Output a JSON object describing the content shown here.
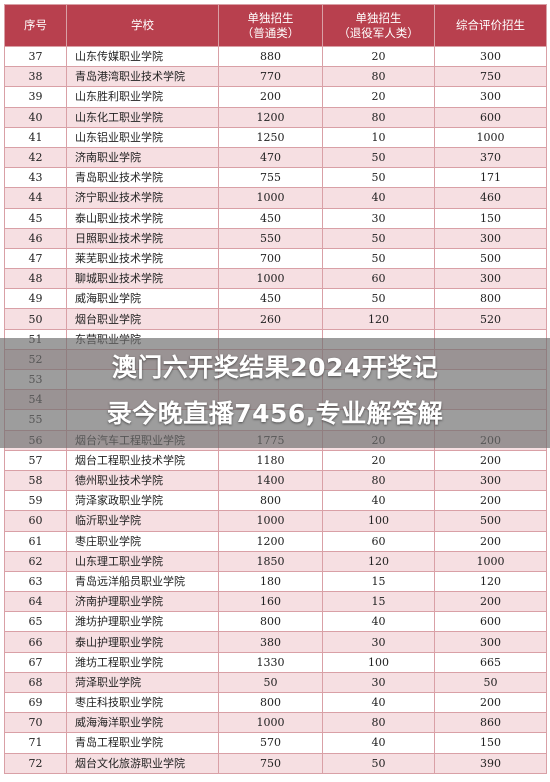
{
  "headers": {
    "no": "序号",
    "school": "学校",
    "general_line1": "单独招生",
    "general_line2": "（普通类）",
    "veteran_line1": "单独招生",
    "veteran_line2": "（退役军人类）",
    "comprehensive": "综合评价招生"
  },
  "rows": [
    {
      "no": "37",
      "school": "山东传媒职业学院",
      "general": "880",
      "veteran": "20",
      "comp": "300"
    },
    {
      "no": "38",
      "school": "青岛港湾职业技术学院",
      "general": "770",
      "veteran": "80",
      "comp": "750"
    },
    {
      "no": "39",
      "school": "山东胜利职业学院",
      "general": "200",
      "veteran": "20",
      "comp": "300"
    },
    {
      "no": "40",
      "school": "山东化工职业学院",
      "general": "1200",
      "veteran": "80",
      "comp": "600"
    },
    {
      "no": "41",
      "school": "山东铝业职业学院",
      "general": "1250",
      "veteran": "10",
      "comp": "1000"
    },
    {
      "no": "42",
      "school": "济南职业学院",
      "general": "470",
      "veteran": "50",
      "comp": "370"
    },
    {
      "no": "43",
      "school": "青岛职业技术学院",
      "general": "755",
      "veteran": "50",
      "comp": "171"
    },
    {
      "no": "44",
      "school": "济宁职业技术学院",
      "general": "1000",
      "veteran": "40",
      "comp": "460"
    },
    {
      "no": "45",
      "school": "泰山职业技术学院",
      "general": "450",
      "veteran": "30",
      "comp": "150"
    },
    {
      "no": "46",
      "school": "日照职业技术学院",
      "general": "550",
      "veteran": "50",
      "comp": "300"
    },
    {
      "no": "47",
      "school": "莱芜职业技术学院",
      "general": "700",
      "veteran": "50",
      "comp": "500"
    },
    {
      "no": "48",
      "school": "聊城职业技术学院",
      "general": "1000",
      "veteran": "60",
      "comp": "300"
    },
    {
      "no": "49",
      "school": "威海职业学院",
      "general": "450",
      "veteran": "50",
      "comp": "800"
    },
    {
      "no": "50",
      "school": "烟台职业学院",
      "general": "260",
      "veteran": "120",
      "comp": "520"
    },
    {
      "no": "51",
      "school": "东营职业学院",
      "general": "",
      "veteran": "",
      "comp": ""
    },
    {
      "no": "52",
      "school": "",
      "general": "",
      "veteran": "",
      "comp": ""
    },
    {
      "no": "53",
      "school": "",
      "general": "",
      "veteran": "",
      "comp": ""
    },
    {
      "no": "54",
      "school": "",
      "general": "",
      "veteran": "",
      "comp": ""
    },
    {
      "no": "55",
      "school": "",
      "general": "",
      "veteran": "",
      "comp": ""
    },
    {
      "no": "56",
      "school": "烟台汽车工程职业学院",
      "general": "1775",
      "veteran": "20",
      "comp": "200"
    },
    {
      "no": "57",
      "school": "烟台工程职业技术学院",
      "general": "1180",
      "veteran": "20",
      "comp": "200"
    },
    {
      "no": "58",
      "school": "德州职业技术学院",
      "general": "1400",
      "veteran": "80",
      "comp": "300"
    },
    {
      "no": "59",
      "school": "菏泽家政职业学院",
      "general": "800",
      "veteran": "40",
      "comp": "200"
    },
    {
      "no": "60",
      "school": "临沂职业学院",
      "general": "1000",
      "veteran": "100",
      "comp": "500"
    },
    {
      "no": "61",
      "school": "枣庄职业学院",
      "general": "1200",
      "veteran": "60",
      "comp": "200"
    },
    {
      "no": "62",
      "school": "山东理工职业学院",
      "general": "1850",
      "veteran": "120",
      "comp": "1000"
    },
    {
      "no": "63",
      "school": "青岛远洋船员职业学院",
      "general": "180",
      "veteran": "15",
      "comp": "120"
    },
    {
      "no": "64",
      "school": "济南护理职业学院",
      "general": "160",
      "veteran": "15",
      "comp": "200"
    },
    {
      "no": "65",
      "school": "潍坊护理职业学院",
      "general": "800",
      "veteran": "40",
      "comp": "600"
    },
    {
      "no": "66",
      "school": "泰山护理职业学院",
      "general": "380",
      "veteran": "30",
      "comp": "300"
    },
    {
      "no": "67",
      "school": "潍坊工程职业学院",
      "general": "1330",
      "veteran": "100",
      "comp": "665"
    },
    {
      "no": "68",
      "school": "菏泽职业学院",
      "general": "50",
      "veteran": "30",
      "comp": "50"
    },
    {
      "no": "69",
      "school": "枣庄科技职业学院",
      "general": "800",
      "veteran": "40",
      "comp": "200"
    },
    {
      "no": "70",
      "school": "威海海洋职业学院",
      "general": "1000",
      "veteran": "80",
      "comp": "860"
    },
    {
      "no": "71",
      "school": "青岛工程职业学院",
      "general": "570",
      "veteran": "40",
      "comp": "150"
    },
    {
      "no": "72",
      "school": "烟台文化旅游职业学院",
      "general": "750",
      "veteran": "50",
      "comp": "390"
    }
  ],
  "banner": {
    "line1": "澳门六开奖结果2024开奖记",
    "line2": "录今晚直播7456,专业解答解"
  }
}
